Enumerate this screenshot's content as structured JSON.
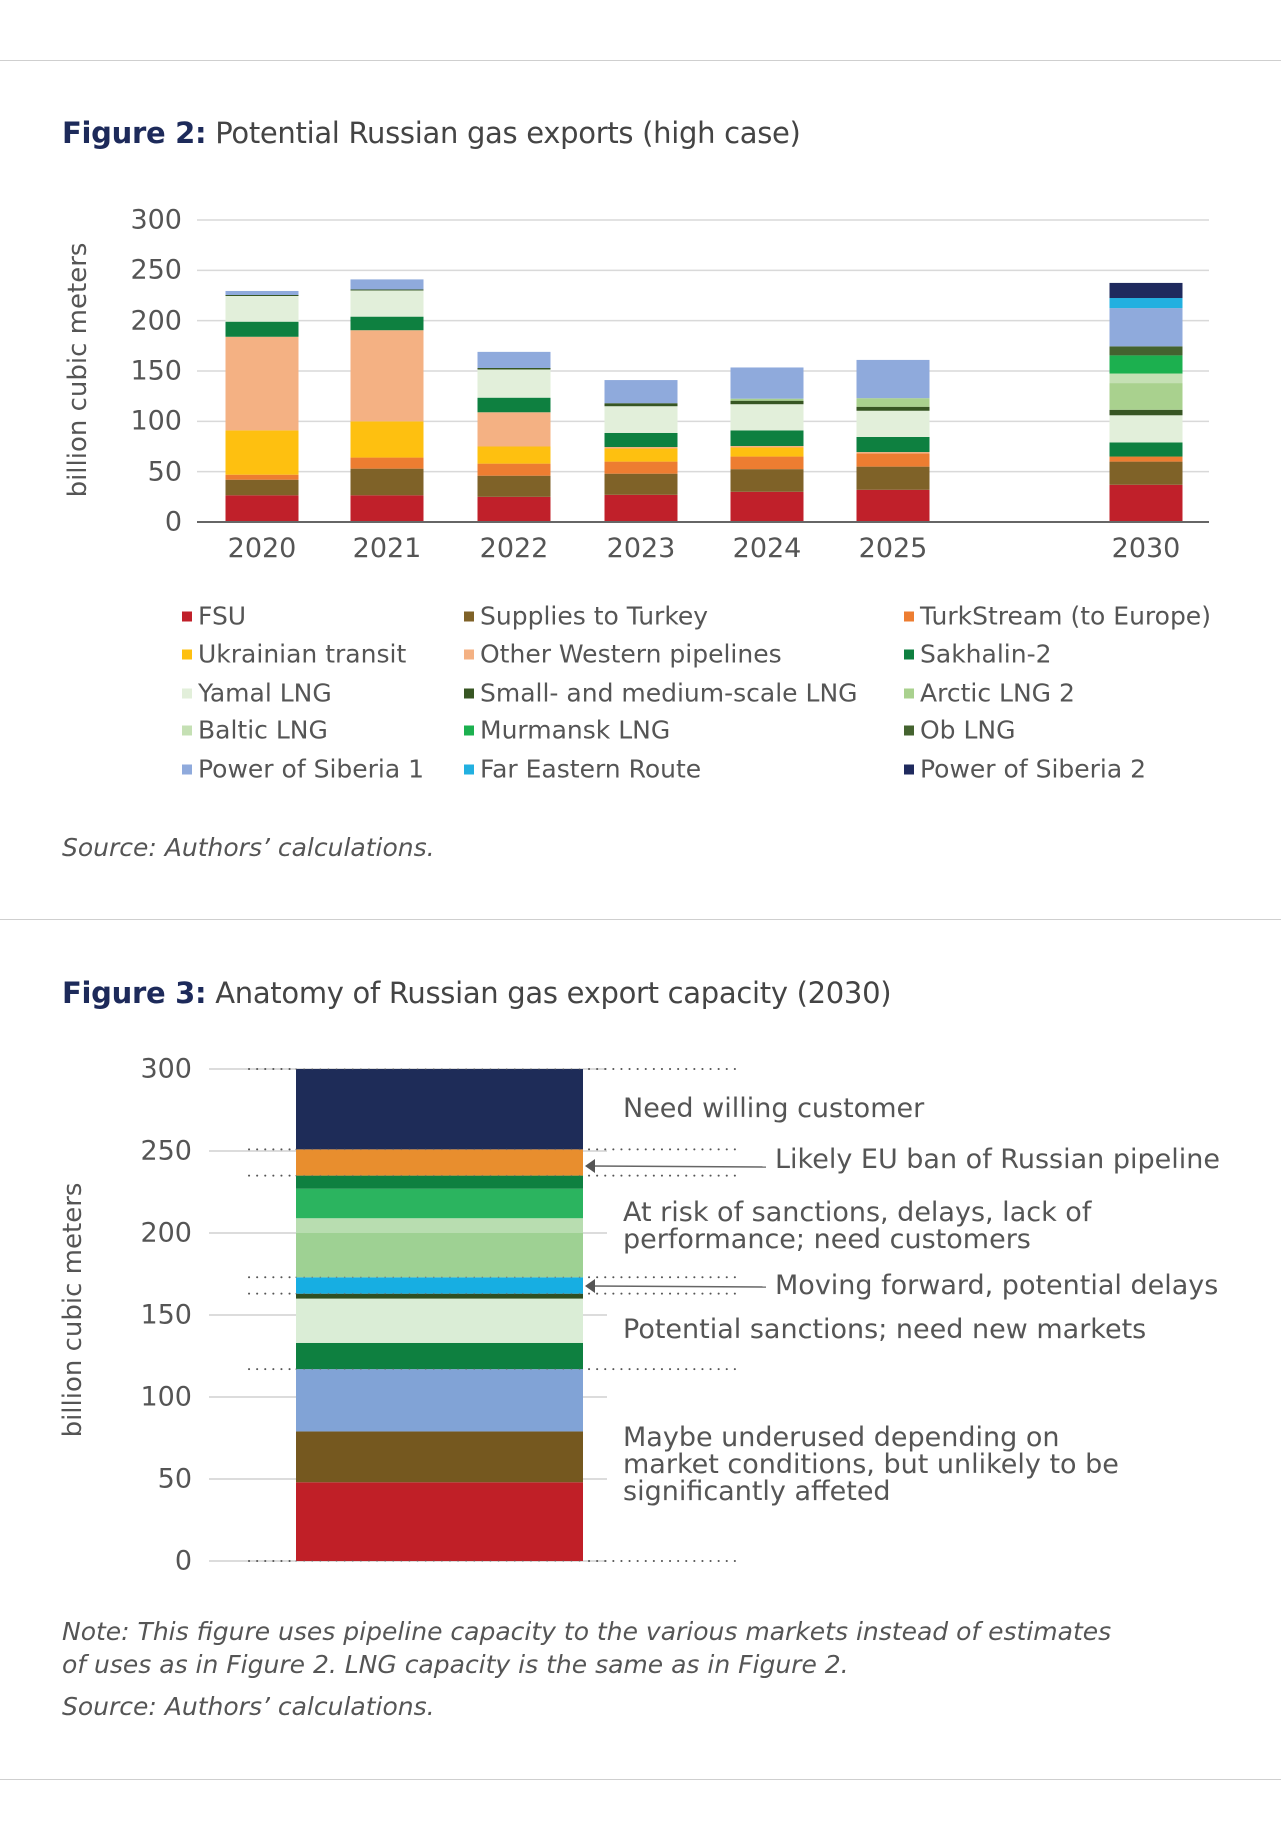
{
  "figure2": {
    "label": "Figure 2:",
    "title": "Potential Russian gas exports (high case)",
    "source": "Source: Authors’ calculations."
  },
  "figure3": {
    "label": "Figure 3:",
    "title": "Anatomy of Russian gas export capacity (2030)",
    "note_line1": "Note: This figure uses pipeline capacity to the various markets instead of estimates",
    "note_line2": "of uses as in Figure 2. LNG capacity is the same as in Figure 2.",
    "source": "Source: Authors’ calculations."
  },
  "chart_data": [
    {
      "type": "bar",
      "stacked": true,
      "title": "Potential Russian gas exports (high case)",
      "ylabel": "billion cubic meters",
      "ylim": [
        0,
        300
      ],
      "yticks": [
        "0",
        "50",
        "100",
        "150",
        "200",
        "250",
        "300"
      ],
      "grid": true,
      "legend_position": "bottom",
      "categories": [
        "2020",
        "2021",
        "2022",
        "2023",
        "2024",
        "2025",
        "2030"
      ],
      "series": [
        {
          "name": "FSU",
          "color": "#C0202A",
          "values": [
            26.5,
            26.5,
            25,
            27,
            30,
            32,
            37
          ]
        },
        {
          "name": "Supplies to Turkey",
          "color": "#7F6228",
          "values": [
            15.5,
            26.5,
            21,
            21,
            22.5,
            23,
            23
          ]
        },
        {
          "name": "TurkStream (to Europe)",
          "color": "#ED7D31",
          "values": [
            5,
            11,
            12,
            12,
            12.5,
            13,
            5
          ]
        },
        {
          "name": "Ukrainian transit",
          "color": "#FEC010",
          "values": [
            44,
            36,
            17,
            13,
            9,
            0,
            0
          ]
        },
        {
          "name": "Other Western pipelines",
          "color": "#F4B183",
          "values": [
            93,
            90.5,
            34,
            1.5,
            1.5,
            1.5,
            0
          ]
        },
        {
          "name": "Sakhalin-2",
          "color": "#0E8040",
          "values": [
            15,
            13.5,
            14.5,
            14,
            15.5,
            15,
            14
          ]
        },
        {
          "name": "Yamal LNG",
          "color": "#E2EFDA",
          "values": [
            25.5,
            26,
            28,
            26.5,
            26,
            26,
            27
          ]
        },
        {
          "name": "Small- and medium-scale LNG",
          "color": "#375623",
          "values": [
            1,
            1,
            1.5,
            3,
            3.5,
            4,
            5.5
          ]
        },
        {
          "name": "Arctic LNG 2",
          "color": "#A9D18E",
          "values": [
            0,
            0,
            0,
            0,
            2,
            8.5,
            26.5
          ]
        },
        {
          "name": "Baltic LNG",
          "color": "#C5E0B4",
          "values": [
            0,
            0,
            0,
            0,
            0,
            0,
            9.5
          ]
        },
        {
          "name": "Murmansk LNG",
          "color": "#1CB04F",
          "values": [
            0,
            0,
            0,
            0,
            0,
            0,
            18
          ]
        },
        {
          "name": "Ob LNG",
          "color": "#44632F",
          "values": [
            0,
            0,
            0,
            0,
            0,
            0,
            9
          ]
        },
        {
          "name": "Power of Siberia 1",
          "color": "#8FAADC",
          "values": [
            4,
            10,
            16,
            23,
            31,
            38,
            38
          ]
        },
        {
          "name": "Far Eastern Route",
          "color": "#22B0E0",
          "values": [
            0,
            0,
            0,
            0,
            0,
            0,
            10
          ]
        },
        {
          "name": "Power of Siberia 2",
          "color": "#1F2A5E",
          "values": [
            0,
            0,
            0,
            0,
            0,
            0,
            15
          ]
        }
      ]
    },
    {
      "type": "bar",
      "stacked": true,
      "title": "Anatomy of Russian gas export capacity (2030)",
      "ylabel": "billion cubic meters",
      "ylim": [
        0,
        300
      ],
      "yticks": [
        "0",
        "50",
        "100",
        "150",
        "200",
        "250",
        "300"
      ],
      "grid": true,
      "segments": [
        {
          "value": 48,
          "color": "#C01F27"
        },
        {
          "value": 31,
          "color": "#75581F"
        },
        {
          "value": 38,
          "color": "#81A3D6"
        },
        {
          "value": 16,
          "color": "#0E8040"
        },
        {
          "value": 27,
          "color": "#DAEDD6"
        },
        {
          "value": 3,
          "color": "#2F4F22"
        },
        {
          "value": 10,
          "color": "#17AEE2"
        },
        {
          "value": 27,
          "color": "#9ED193"
        },
        {
          "value": 9,
          "color": "#B8DDB0"
        },
        {
          "value": 18,
          "color": "#2BB45F"
        },
        {
          "value": 8,
          "color": "#0E8040"
        },
        {
          "value": 16,
          "color": "#E88E2E"
        },
        {
          "value": 49,
          "color": "#1E2C58"
        }
      ],
      "dotted_levels": [
        0,
        117,
        163,
        173,
        235,
        251,
        300
      ],
      "annotations": [
        "Need willing customer",
        "Likely EU ban of Russian pipeline",
        "At risk of sanctions, delays, lack of",
        "performance; need customers",
        "Moving forward, potential delays",
        "Potential sanctions; need new markets",
        "Maybe underused depending on",
        "market conditions, but unlikely to be",
        "significantly affeted"
      ]
    }
  ]
}
